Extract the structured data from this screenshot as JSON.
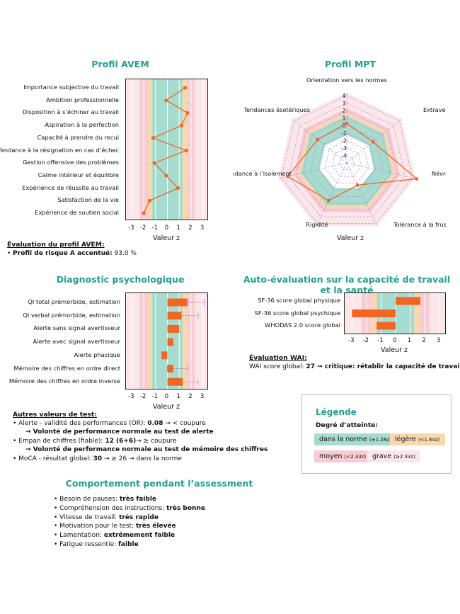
{
  "colors": {
    "norm": "#a6dccf",
    "light": "#f9d8ad",
    "medium": "#f7cdd3",
    "severe": "#fbe7ea",
    "bar": "#f26522",
    "line": "#f26522",
    "accent": "#22a08e"
  },
  "avem": {
    "title": "Profil AVEM",
    "xlabel": "Valeur z",
    "note_title": "Évaluation du profil AVEM:",
    "note_line": "Profil de risque A accentué: 93.0 %",
    "note_bold": "Profil de risque A accentué:",
    "note_value": "93.0 %"
  },
  "mpt": {
    "title": "Profil MPT",
    "xlabel": "Valeur z"
  },
  "diag": {
    "title": "Diagnostic psychologique",
    "xlabel": "Valeur z",
    "other_title": "Autres valeurs de test:",
    "other": [
      {
        "text": "Alerte - validité des performances (OR): ",
        "bold": "0.08",
        "rest": " → < coupure"
      },
      {
        "text": "",
        "bold": "→ Volonté de performance normale au test de alerte",
        "rest": ""
      },
      {
        "text": "Empan de chiffres (fiable): ",
        "bold": "12 (6+6)",
        "rest": "→ ≥ coupure"
      },
      {
        "text": "",
        "bold": "→ Volonté de performance normale au test de mémoire des chiffres",
        "rest": ""
      },
      {
        "text": "MoCA - résultat global: ",
        "bold": "30",
        "rest": " → ≥ 26 → dans la norme"
      }
    ]
  },
  "wai": {
    "title": "Auto-évaluation sur la capacité de travail et la santé",
    "xlabel": "Valeur z",
    "note_title": "Évaluation WAI:",
    "note_pre": "WAI score global: ",
    "note_bold": "27 → critique: rétablir la capacité de travail"
  },
  "legend": {
    "title": "Légende",
    "subtitle": "Degré d’atteinte:",
    "items": [
      {
        "label": "dans la norme",
        "sub": "(±1.28z)"
      },
      {
        "label": "légère",
        "sub": "(<1.64z)"
      },
      {
        "label": "moyen",
        "sub": "(<2.33z)"
      },
      {
        "label": "grave",
        "sub": "(≥2.33z)"
      }
    ]
  },
  "behavior": {
    "title": "Comportement pendant l’assessment",
    "items": [
      {
        "label": "Besoin de pauses: ",
        "value": "très faible"
      },
      {
        "label": "Compréhension des instructions: ",
        "value": "très bonne"
      },
      {
        "label": "Vitesse de travail: ",
        "value": "très rapide"
      },
      {
        "label": "Motivation pour le test: ",
        "value": "très élevée"
      },
      {
        "label": "Lamentation: ",
        "value": "extrêmement faible"
      },
      {
        "label": "Fatigue ressentie: ",
        "value": "faible"
      }
    ]
  },
  "chart_data": [
    {
      "type": "line",
      "title": "Profil AVEM",
      "xlabel": "Valeur z",
      "xlim": [
        -3.5,
        3.5
      ],
      "xticks": [
        -3,
        -2,
        -1,
        0,
        1,
        2,
        3
      ],
      "categories": [
        "Importance subjective du travail",
        "Ambition professionnelle",
        "Disposition à s’échiner au travail",
        "Aspiration à la perfection",
        "Capacité à prendre du recul",
        "Tendance à la résignation en cas d’échec",
        "Gestion offensive des problèmes",
        "Calme intérieur et équilibre",
        "Expérience de réussite au travail",
        "Satisfaction de la vie",
        "Expérience de soutien social"
      ],
      "values": [
        1.5,
        -0.1,
        1.7,
        1.2,
        -1.2,
        1.6,
        -1.1,
        -0.1,
        0.9,
        -1.5,
        -2.0
      ]
    },
    {
      "type": "radar",
      "title": "Profil MPT",
      "xlabel": "Valeur z",
      "rlim": [
        -5,
        4
      ],
      "rticks": [
        4,
        3,
        2,
        1,
        0,
        -1,
        -2,
        -3,
        -4
      ],
      "categories": [
        "Orientation vers les normes",
        "Extraversion",
        "Névrosisme",
        "Tolérance à la frustration",
        "Rigidité",
        "Tendance à l’isolement",
        "Tendances ésotériques"
      ],
      "values": [
        0.3,
        -0.5,
        4.6,
        -1.7,
        0.6,
        3.1,
        0.0
      ]
    },
    {
      "type": "bar",
      "title": "Diagnostic psychologique",
      "xlabel": "Valeur z",
      "xlim": [
        -3.5,
        3.5
      ],
      "xticks": [
        -3,
        -2,
        -1,
        0,
        1,
        2,
        3
      ],
      "categories": [
        "QI total prémorbide, estimation",
        "QI verbal prémorbide, estimation",
        "Alerte sans signal avertisseur",
        "Alerte avec signal avertisseur",
        "Alerte phasique",
        "Mémoire des chiffres en ordre direct",
        "Mémoire des chiffres en ordre inverse"
      ],
      "values": [
        1.7,
        1.2,
        1.0,
        0.5,
        -0.5,
        0.5,
        1.3
      ],
      "ranges": [
        [
          1.0,
          3.1
        ],
        [
          0.8,
          2.6
        ],
        null,
        null,
        null,
        [
          0.0,
          1.7
        ],
        [
          0.7,
          2.6
        ]
      ]
    },
    {
      "type": "bar",
      "title": "Auto-évaluation sur la capacité de travail et la santé",
      "xlabel": "Valeur z",
      "xlim": [
        -3.5,
        3.5
      ],
      "xticks": [
        -3,
        -2,
        -1,
        0,
        1,
        2,
        3
      ],
      "categories": [
        "SF-36 score global physique",
        "SF-36 score global psychique",
        "WHODAS 2.0 score global"
      ],
      "values": [
        1.7,
        -3.0,
        -1.3
      ]
    }
  ]
}
